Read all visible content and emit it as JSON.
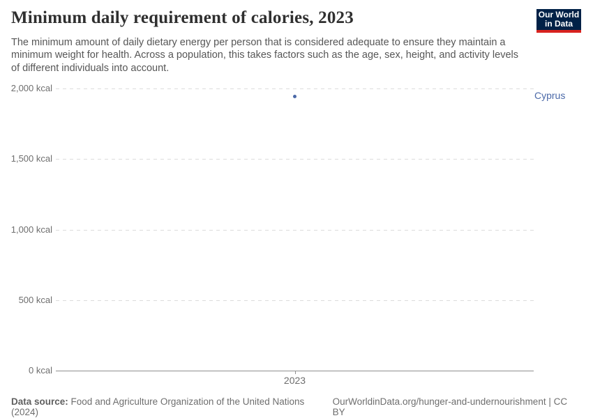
{
  "header": {
    "title": "Minimum daily requirement of calories, 2023",
    "subtitle": "The minimum amount of daily dietary energy per person that is considered adequate to ensure they maintain a minimum weight for health. Across a population, this takes factors such as the age, sex, height, and activity levels of different individuals into account.",
    "logo": {
      "line1": "Our World",
      "line2": "in Data"
    }
  },
  "chart_data": {
    "type": "scatter",
    "title": "Minimum daily requirement of calories, 2023",
    "x": [
      2023
    ],
    "xticks": [
      "2023"
    ],
    "series": [
      {
        "name": "Cyprus",
        "values": [
          1945
        ]
      }
    ],
    "unit": "kcal",
    "xlabel": "",
    "ylabel": "",
    "ylim": [
      0,
      2000
    ],
    "yticks": [
      {
        "value": 0,
        "label": "0 kcal"
      },
      {
        "value": 500,
        "label": "500 kcal"
      },
      {
        "value": 1000,
        "label": "1,000 kcal"
      },
      {
        "value": 1500,
        "label": "1,500 kcal"
      },
      {
        "value": 2000,
        "label": "2,000 kcal"
      }
    ],
    "grid": "horizontal-dashed",
    "legend_position": "right-of-plot"
  },
  "footer": {
    "datasource_label": "Data source:",
    "datasource_value": "Food and Agriculture Organization of the United Nations (2024)",
    "attribution": "OurWorldinData.org/hunger-and-undernourishment | CC BY"
  },
  "colors": {
    "accent": "#4b69a8",
    "logo_bg": "#002147",
    "logo_red": "#d8231f",
    "gridline": "#dcdcdc",
    "axis": "#8f8f8f"
  }
}
